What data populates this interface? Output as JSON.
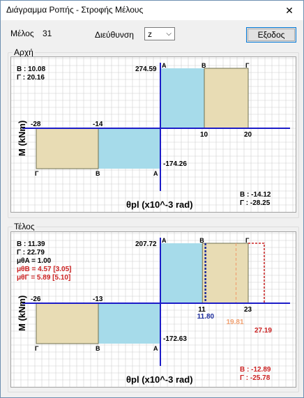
{
  "window": {
    "title": "Διάγραμμα Ροπής - Στροφής Μέλους",
    "close_glyph": "✕"
  },
  "header": {
    "member_label": "Μέλος",
    "member_value": "31",
    "direction_label": "Διεύθυνση",
    "direction_value": "z",
    "exit_label": "Εξοδος"
  },
  "panels": [
    {
      "caption": "Αρχή",
      "info_tl": [
        "B : 10.08",
        "Γ : 20.16"
      ],
      "info_br": [
        "B : -14.12",
        "Γ : -28.25"
      ],
      "ylabel": "M (kNm)",
      "xlabel": "θpl (x10^-3 rad)",
      "pos": {
        "moment": "274.59",
        "x_ticks": [
          "10",
          "20"
        ],
        "pt_labels": [
          "A",
          "B",
          "Γ"
        ],
        "values": {
          "M": 274.59,
          "B": 10,
          "G": 20
        }
      },
      "neg": {
        "moment": "-174.26",
        "x_ticks": [
          "-14",
          "-28"
        ],
        "pt_labels": [
          "A",
          "B",
          "Γ"
        ],
        "values": {
          "M": -174.26,
          "B": -14,
          "G": -28
        }
      }
    },
    {
      "caption": "Τέλος",
      "info_tl": [
        "B : 11.39",
        "Γ : 22.79",
        "μθA = 1.00"
      ],
      "info_red": [
        "μθB = 4.57   [3.05]",
        "μθΓ = 5.89   [5.10]"
      ],
      "info_br": [
        "B : -12.89",
        "Γ : -25.78"
      ],
      "ylabel": "M (kNm)",
      "xlabel": "θpl (x10^-3 rad)",
      "pos": {
        "moment": "207.72",
        "x_ticks": [
          "11",
          "23"
        ],
        "pt_labels": [
          "A",
          "B",
          "Γ"
        ],
        "values": {
          "M": 207.72,
          "B": 11,
          "G": 23
        }
      },
      "neg": {
        "moment": "-172.63",
        "x_ticks": [
          "-13",
          "-26"
        ],
        "pt_labels": [
          "A",
          "B",
          "Γ"
        ],
        "values": {
          "M": -172.63,
          "B": -13,
          "G": -26
        }
      },
      "markers": {
        "blue": "11.80",
        "orange": "19.81",
        "red": "27.19"
      }
    }
  ],
  "colors": {
    "blue_fill": "#a6dbea",
    "tan_fill": "#e8dcb4",
    "axis": "#1c1cc8",
    "red": "#cc2222",
    "orange": "#f0a070",
    "dark_blue": "#1c2c9c",
    "grid": "#d0d0d0"
  }
}
